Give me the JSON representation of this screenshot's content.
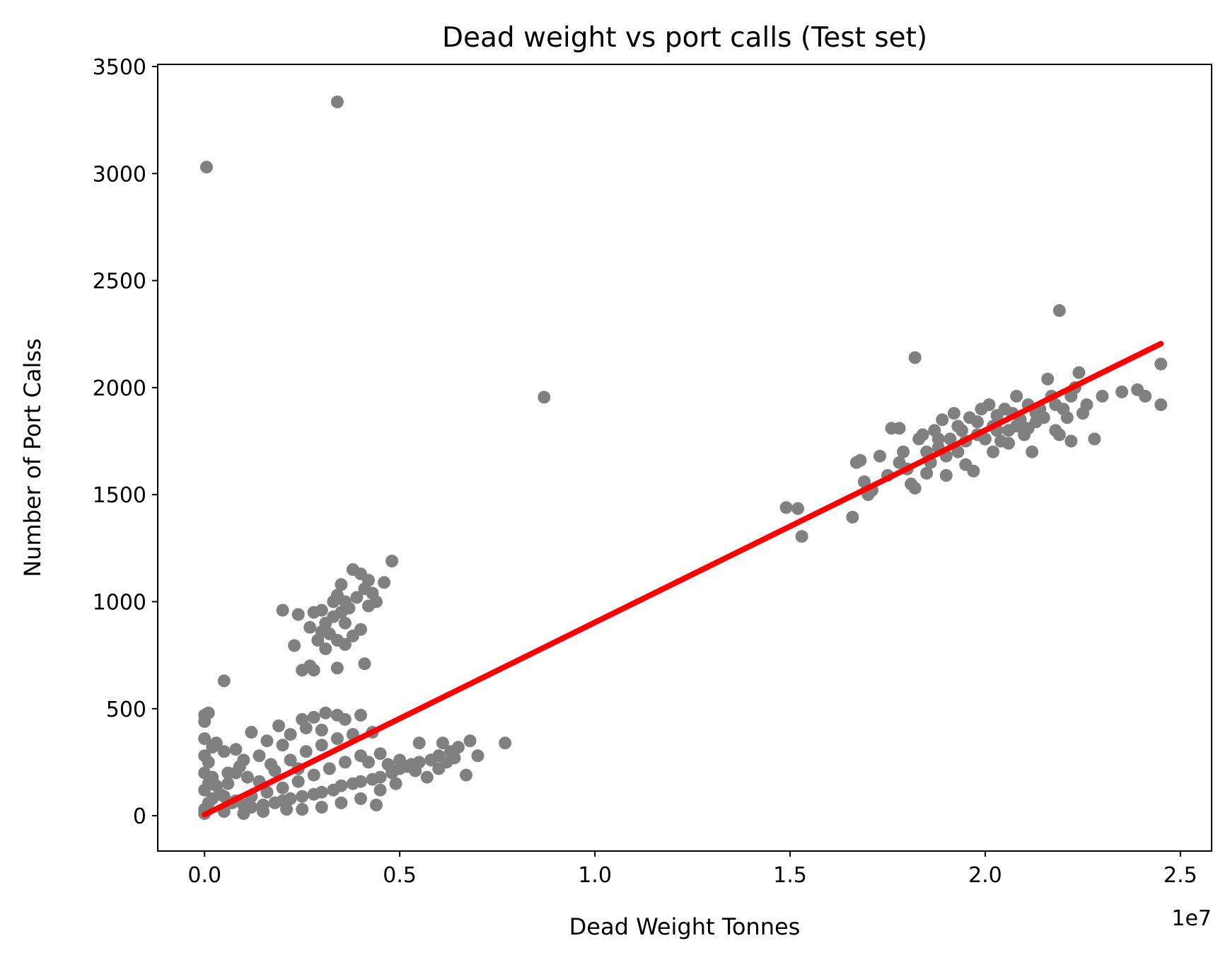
{
  "chart_data": {
    "type": "scatter",
    "title": "Dead weight vs port calls (Test set)",
    "xlabel": "Dead Weight Tonnes",
    "ylabel": "Number of Port Calss",
    "x_offset_label": "1e7",
    "xlim": [
      -0.12,
      2.58
    ],
    "ylim": [
      -165,
      3510
    ],
    "x_ticks": [
      0.0,
      0.5,
      1.0,
      1.5,
      2.0,
      2.5
    ],
    "x_tick_labels": [
      "0.0",
      "0.5",
      "1.0",
      "1.5",
      "2.0",
      "2.5"
    ],
    "y_ticks": [
      0,
      500,
      1000,
      1500,
      2000,
      2500,
      3000,
      3500
    ],
    "y_tick_labels": [
      "0",
      "500",
      "1000",
      "1500",
      "2000",
      "2500",
      "3000",
      "3500"
    ],
    "grid": false,
    "series": [
      {
        "color": "#808080",
        "points": [
          [
            0.005,
            3030
          ],
          [
            0.34,
            3335
          ],
          [
            0.87,
            1955
          ],
          [
            2.19,
            2360
          ],
          [
            1.82,
            2140
          ],
          [
            0.05,
            630
          ],
          [
            0.0,
            470
          ],
          [
            0.01,
            480
          ],
          [
            0.0,
            440
          ],
          [
            0.2,
            960
          ],
          [
            0.24,
            940
          ],
          [
            0.23,
            795
          ],
          [
            0.25,
            680
          ],
          [
            0.27,
            700
          ],
          [
            0.28,
            680
          ],
          [
            0.34,
            690
          ],
          [
            0.41,
            710
          ],
          [
            0.28,
            950
          ],
          [
            0.3,
            960
          ],
          [
            0.33,
            1000
          ],
          [
            0.34,
            1030
          ],
          [
            0.36,
            1000
          ],
          [
            0.38,
            1150
          ],
          [
            0.4,
            1130
          ],
          [
            0.42,
            1100
          ],
          [
            0.48,
            1190
          ],
          [
            0.46,
            1090
          ],
          [
            0.44,
            1000
          ],
          [
            0.36,
            900
          ],
          [
            0.3,
            860
          ],
          [
            0.32,
            850
          ],
          [
            0.34,
            820
          ],
          [
            0.38,
            840
          ],
          [
            0.4,
            870
          ],
          [
            0.31,
            900
          ],
          [
            0.35,
            950
          ],
          [
            0.37,
            970
          ],
          [
            0.39,
            1020
          ],
          [
            0.41,
            1060
          ],
          [
            0.43,
            1040
          ],
          [
            0.33,
            930
          ],
          [
            0.29,
            820
          ],
          [
            0.31,
            780
          ],
          [
            0.36,
            800
          ],
          [
            0.42,
            980
          ],
          [
            0.27,
            880
          ],
          [
            0.35,
            1080
          ],
          [
            0.0,
            360
          ],
          [
            0.03,
            340
          ],
          [
            0.05,
            300
          ],
          [
            0.08,
            310
          ],
          [
            0.1,
            260
          ],
          [
            0.12,
            390
          ],
          [
            0.16,
            350
          ],
          [
            0.19,
            420
          ],
          [
            0.22,
            380
          ],
          [
            0.25,
            450
          ],
          [
            0.28,
            460
          ],
          [
            0.31,
            480
          ],
          [
            0.34,
            470
          ],
          [
            0.36,
            450
          ],
          [
            0.4,
            470
          ],
          [
            0.43,
            390
          ],
          [
            0.3,
            400
          ],
          [
            0.26,
            410
          ],
          [
            0.2,
            330
          ],
          [
            0.14,
            280
          ],
          [
            0.08,
            200
          ],
          [
            0.06,
            150
          ],
          [
            0.04,
            100
          ],
          [
            0.02,
            80
          ],
          [
            0.0,
            30
          ],
          [
            0.01,
            60
          ],
          [
            0.0,
            120
          ],
          [
            0.0,
            200
          ],
          [
            0.01,
            250
          ],
          [
            0.02,
            180
          ],
          [
            0.03,
            140
          ],
          [
            0.05,
            90
          ],
          [
            0.07,
            60
          ],
          [
            0.1,
            50
          ],
          [
            0.12,
            40
          ],
          [
            0.15,
            50
          ],
          [
            0.18,
            60
          ],
          [
            0.2,
            70
          ],
          [
            0.22,
            80
          ],
          [
            0.25,
            90
          ],
          [
            0.28,
            100
          ],
          [
            0.3,
            110
          ],
          [
            0.33,
            120
          ],
          [
            0.35,
            140
          ],
          [
            0.38,
            150
          ],
          [
            0.4,
            160
          ],
          [
            0.43,
            170
          ],
          [
            0.45,
            180
          ],
          [
            0.48,
            200
          ],
          [
            0.5,
            220
          ],
          [
            0.53,
            240
          ],
          [
            0.55,
            250
          ],
          [
            0.58,
            260
          ],
          [
            0.6,
            280
          ],
          [
            0.63,
            300
          ],
          [
            0.65,
            320
          ],
          [
            0.68,
            350
          ],
          [
            0.7,
            280
          ],
          [
            0.77,
            340
          ],
          [
            0.67,
            190
          ],
          [
            0.61,
            340
          ],
          [
            0.55,
            340
          ],
          [
            0.6,
            220
          ],
          [
            0.52,
            230
          ],
          [
            0.45,
            290
          ],
          [
            0.4,
            280
          ],
          [
            0.36,
            250
          ],
          [
            0.32,
            220
          ],
          [
            0.28,
            190
          ],
          [
            0.24,
            160
          ],
          [
            0.2,
            130
          ],
          [
            0.16,
            110
          ],
          [
            0.12,
            90
          ],
          [
            0.08,
            70
          ],
          [
            0.14,
            160
          ],
          [
            0.18,
            210
          ],
          [
            0.22,
            260
          ],
          [
            0.26,
            300
          ],
          [
            0.3,
            330
          ],
          [
            0.34,
            360
          ],
          [
            0.38,
            380
          ],
          [
            0.17,
            240
          ],
          [
            0.11,
            180
          ],
          [
            0.09,
            230
          ],
          [
            0.06,
            200
          ],
          [
            0.24,
            220
          ],
          [
            0.42,
            250
          ],
          [
            0.47,
            240
          ],
          [
            0.5,
            260
          ],
          [
            0.35,
            60
          ],
          [
            0.25,
            30
          ],
          [
            0.15,
            20
          ],
          [
            0.3,
            40
          ],
          [
            0.4,
            80
          ],
          [
            0.45,
            120
          ],
          [
            0.02,
            320
          ],
          [
            0.0,
            280
          ],
          [
            0.01,
            150
          ],
          [
            0.0,
            10
          ],
          [
            0.44,
            50
          ],
          [
            0.57,
            180
          ],
          [
            0.62,
            250
          ],
          [
            0.64,
            270
          ],
          [
            0.54,
            210
          ],
          [
            0.49,
            150
          ],
          [
            0.21,
            30
          ],
          [
            0.1,
            10
          ],
          [
            0.05,
            20
          ],
          [
            1.49,
            1440
          ],
          [
            1.52,
            1435
          ],
          [
            1.53,
            1305
          ],
          [
            1.66,
            1395
          ],
          [
            1.67,
            1650
          ],
          [
            1.68,
            1660
          ],
          [
            1.69,
            1560
          ],
          [
            1.7,
            1500
          ],
          [
            1.71,
            1520
          ],
          [
            1.73,
            1680
          ],
          [
            1.75,
            1590
          ],
          [
            1.76,
            1810
          ],
          [
            1.78,
            1810
          ],
          [
            1.78,
            1650
          ],
          [
            1.8,
            1620
          ],
          [
            1.81,
            1550
          ],
          [
            1.82,
            1530
          ],
          [
            1.83,
            1760
          ],
          [
            1.84,
            1780
          ],
          [
            1.85,
            1700
          ],
          [
            1.86,
            1650
          ],
          [
            1.87,
            1800
          ],
          [
            1.88,
            1720
          ],
          [
            1.89,
            1850
          ],
          [
            1.9,
            1680
          ],
          [
            1.91,
            1760
          ],
          [
            1.92,
            1880
          ],
          [
            1.93,
            1700
          ],
          [
            1.94,
            1800
          ],
          [
            1.95,
            1750
          ],
          [
            1.96,
            1860
          ],
          [
            1.97,
            1610
          ],
          [
            1.98,
            1780
          ],
          [
            1.99,
            1900
          ],
          [
            2.0,
            1760
          ],
          [
            2.01,
            1920
          ],
          [
            2.02,
            1820
          ],
          [
            2.03,
            1870
          ],
          [
            2.04,
            1750
          ],
          [
            2.05,
            1900
          ],
          [
            2.06,
            1800
          ],
          [
            2.07,
            1880
          ],
          [
            2.08,
            1960
          ],
          [
            2.09,
            1850
          ],
          [
            2.1,
            1780
          ],
          [
            2.11,
            1920
          ],
          [
            2.12,
            1700
          ],
          [
            2.13,
            1840
          ],
          [
            2.14,
            1900
          ],
          [
            2.15,
            1860
          ],
          [
            2.16,
            2040
          ],
          [
            2.17,
            1960
          ],
          [
            2.18,
            1800
          ],
          [
            2.19,
            1780
          ],
          [
            2.2,
            1900
          ],
          [
            2.21,
            1860
          ],
          [
            2.22,
            1750
          ],
          [
            2.23,
            2000
          ],
          [
            2.24,
            2070
          ],
          [
            2.25,
            1880
          ],
          [
            2.26,
            1920
          ],
          [
            2.28,
            1760
          ],
          [
            2.3,
            1960
          ],
          [
            2.35,
            1980
          ],
          [
            2.39,
            1990
          ],
          [
            2.41,
            1960
          ],
          [
            2.45,
            2110
          ],
          [
            2.45,
            1920
          ],
          [
            1.9,
            1590
          ],
          [
            1.95,
            1640
          ],
          [
            2.02,
            1700
          ],
          [
            2.06,
            1740
          ],
          [
            2.11,
            1810
          ],
          [
            1.85,
            1600
          ],
          [
            1.79,
            1700
          ],
          [
            1.88,
            1760
          ],
          [
            1.93,
            1820
          ],
          [
            1.98,
            1840
          ],
          [
            2.03,
            1800
          ],
          [
            2.08,
            1820
          ],
          [
            2.13,
            1880
          ],
          [
            2.18,
            1920
          ],
          [
            2.22,
            1960
          ]
        ]
      }
    ],
    "fit_line": {
      "color": "#ff0000",
      "x": [
        0.0,
        2.45
      ],
      "y": [
        5,
        2205
      ]
    }
  }
}
